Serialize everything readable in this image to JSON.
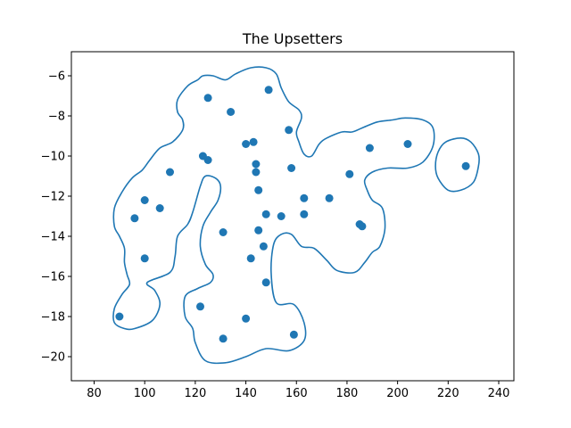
{
  "chart_data": {
    "type": "scatter",
    "title": "The Upsetters",
    "xlabel": "",
    "ylabel": "",
    "xlim": [
      71,
      246
    ],
    "ylim": [
      -21.2,
      -4.8
    ],
    "xticks": [
      80,
      100,
      120,
      140,
      160,
      180,
      200,
      220,
      240
    ],
    "yticks": [
      -6,
      -8,
      -10,
      -12,
      -14,
      -16,
      -18,
      -20
    ],
    "xtick_labels": [
      "80",
      "100",
      "120",
      "140",
      "160",
      "180",
      "200",
      "220",
      "240"
    ],
    "ytick_labels": [
      "−6",
      "−8",
      "−10",
      "−12",
      "−14",
      "−16",
      "−18",
      "−20"
    ],
    "grid": false,
    "marker_color": "#1f77b4",
    "contour_color": "#1f77b4",
    "series": [
      {
        "points": [
          {
            "x": 90,
            "y": -18.0
          },
          {
            "x": 96,
            "y": -13.1
          },
          {
            "x": 100,
            "y": -12.2
          },
          {
            "x": 100,
            "y": -15.1
          },
          {
            "x": 106,
            "y": -12.6
          },
          {
            "x": 110,
            "y": -10.8
          },
          {
            "x": 122,
            "y": -17.5
          },
          {
            "x": 123,
            "y": -10.0
          },
          {
            "x": 125,
            "y": -10.2
          },
          {
            "x": 125,
            "y": -7.1
          },
          {
            "x": 131,
            "y": -13.8
          },
          {
            "x": 131,
            "y": -19.1
          },
          {
            "x": 134,
            "y": -7.8
          },
          {
            "x": 140,
            "y": -9.4
          },
          {
            "x": 140,
            "y": -18.1
          },
          {
            "x": 142,
            "y": -15.1
          },
          {
            "x": 143,
            "y": -9.3
          },
          {
            "x": 144,
            "y": -10.4
          },
          {
            "x": 144,
            "y": -10.8
          },
          {
            "x": 145,
            "y": -11.7
          },
          {
            "x": 145,
            "y": -13.7
          },
          {
            "x": 147,
            "y": -14.5
          },
          {
            "x": 148,
            "y": -12.9
          },
          {
            "x": 148,
            "y": -16.3
          },
          {
            "x": 149,
            "y": -6.7
          },
          {
            "x": 154,
            "y": -13.0
          },
          {
            "x": 157,
            "y": -8.7
          },
          {
            "x": 158,
            "y": -10.6
          },
          {
            "x": 159,
            "y": -18.9
          },
          {
            "x": 163,
            "y": -12.1
          },
          {
            "x": 163,
            "y": -12.9
          },
          {
            "x": 173,
            "y": -12.1
          },
          {
            "x": 181,
            "y": -10.9
          },
          {
            "x": 185,
            "y": -13.4
          },
          {
            "x": 186,
            "y": -13.5
          },
          {
            "x": 189,
            "y": -9.6
          },
          {
            "x": 204,
            "y": -9.4
          },
          {
            "x": 227,
            "y": -10.5
          }
        ]
      }
    ],
    "contours": [
      [
        [
          96,
          -18.6
        ],
        [
          103,
          -18.2
        ],
        [
          106,
          -17.4
        ],
        [
          104,
          -16.7
        ],
        [
          101,
          -16.3
        ],
        [
          110,
          -15.8
        ],
        [
          112,
          -15.0
        ],
        [
          113,
          -14.0
        ],
        [
          117,
          -13.4
        ],
        [
          119,
          -12.8
        ],
        [
          122,
          -11.5
        ],
        [
          124,
          -11.0
        ],
        [
          128,
          -11.1
        ],
        [
          130,
          -11.5
        ],
        [
          129,
          -12.2
        ],
        [
          126,
          -12.8
        ],
        [
          123,
          -13.5
        ],
        [
          122,
          -14.5
        ],
        [
          124,
          -15.4
        ],
        [
          127,
          -15.9
        ],
        [
          126,
          -16.3
        ],
        [
          121,
          -16.6
        ],
        [
          116,
          -17.0
        ],
        [
          116,
          -18.0
        ],
        [
          119,
          -18.6
        ],
        [
          120,
          -19.3
        ],
        [
          124,
          -20.2
        ],
        [
          132,
          -20.3
        ],
        [
          140,
          -20.0
        ],
        [
          148,
          -19.6
        ],
        [
          157,
          -19.7
        ],
        [
          163,
          -19.2
        ],
        [
          163,
          -18.3
        ],
        [
          159,
          -17.4
        ],
        [
          152,
          -17.3
        ],
        [
          150,
          -15.8
        ],
        [
          151,
          -14.4
        ],
        [
          154,
          -13.9
        ],
        [
          158,
          -13.9
        ],
        [
          162,
          -14.5
        ],
        [
          167,
          -14.6
        ],
        [
          172,
          -15.2
        ],
        [
          176,
          -15.7
        ],
        [
          183,
          -15.8
        ],
        [
          187,
          -15.3
        ],
        [
          190,
          -14.8
        ],
        [
          193,
          -14.5
        ],
        [
          195,
          -13.6
        ],
        [
          194,
          -12.6
        ],
        [
          190,
          -12.2
        ],
        [
          188,
          -11.7
        ],
        [
          187,
          -11.2
        ],
        [
          190,
          -10.8
        ],
        [
          196,
          -10.6
        ],
        [
          204,
          -10.6
        ],
        [
          210,
          -10.3
        ],
        [
          214,
          -9.5
        ],
        [
          214,
          -8.6
        ],
        [
          210,
          -8.2
        ],
        [
          203,
          -8.1
        ],
        [
          198,
          -8.2
        ],
        [
          192,
          -8.3
        ],
        [
          186,
          -8.6
        ],
        [
          182,
          -8.8
        ],
        [
          178,
          -8.8
        ],
        [
          172,
          -9.1
        ],
        [
          169,
          -9.4
        ],
        [
          166,
          -10.0
        ],
        [
          163,
          -9.9
        ],
        [
          161,
          -9.3
        ],
        [
          160,
          -8.8
        ],
        [
          162,
          -8.1
        ],
        [
          161,
          -7.7
        ],
        [
          157,
          -7.3
        ],
        [
          154,
          -6.6
        ],
        [
          152,
          -5.9
        ],
        [
          148,
          -5.6
        ],
        [
          142,
          -5.6
        ],
        [
          136,
          -5.9
        ],
        [
          132,
          -6.2
        ],
        [
          127,
          -6.0
        ],
        [
          123,
          -6.0
        ],
        [
          121,
          -6.2
        ],
        [
          117,
          -6.5
        ],
        [
          113,
          -7.2
        ],
        [
          113,
          -7.8
        ],
        [
          115,
          -8.2
        ],
        [
          115,
          -8.7
        ],
        [
          111,
          -9.3
        ],
        [
          106,
          -9.6
        ],
        [
          102,
          -10.2
        ],
        [
          99,
          -10.7
        ],
        [
          95,
          -11.1
        ],
        [
          91,
          -11.8
        ],
        [
          88,
          -12.6
        ],
        [
          88,
          -13.5
        ],
        [
          90,
          -14.0
        ],
        [
          92,
          -14.6
        ],
        [
          92,
          -15.3
        ],
        [
          93,
          -15.9
        ],
        [
          94,
          -16.4
        ],
        [
          91,
          -16.9
        ],
        [
          88,
          -17.6
        ],
        [
          88,
          -18.3
        ],
        [
          92,
          -18.6
        ]
      ],
      [
        [
          225,
          -9.1
        ],
        [
          219,
          -9.3
        ],
        [
          216,
          -9.8
        ],
        [
          215,
          -10.5
        ],
        [
          216,
          -11.1
        ],
        [
          220,
          -11.7
        ],
        [
          225,
          -11.7
        ],
        [
          230,
          -11.3
        ],
        [
          232,
          -10.5
        ],
        [
          232,
          -9.9
        ],
        [
          229,
          -9.3
        ]
      ]
    ]
  }
}
